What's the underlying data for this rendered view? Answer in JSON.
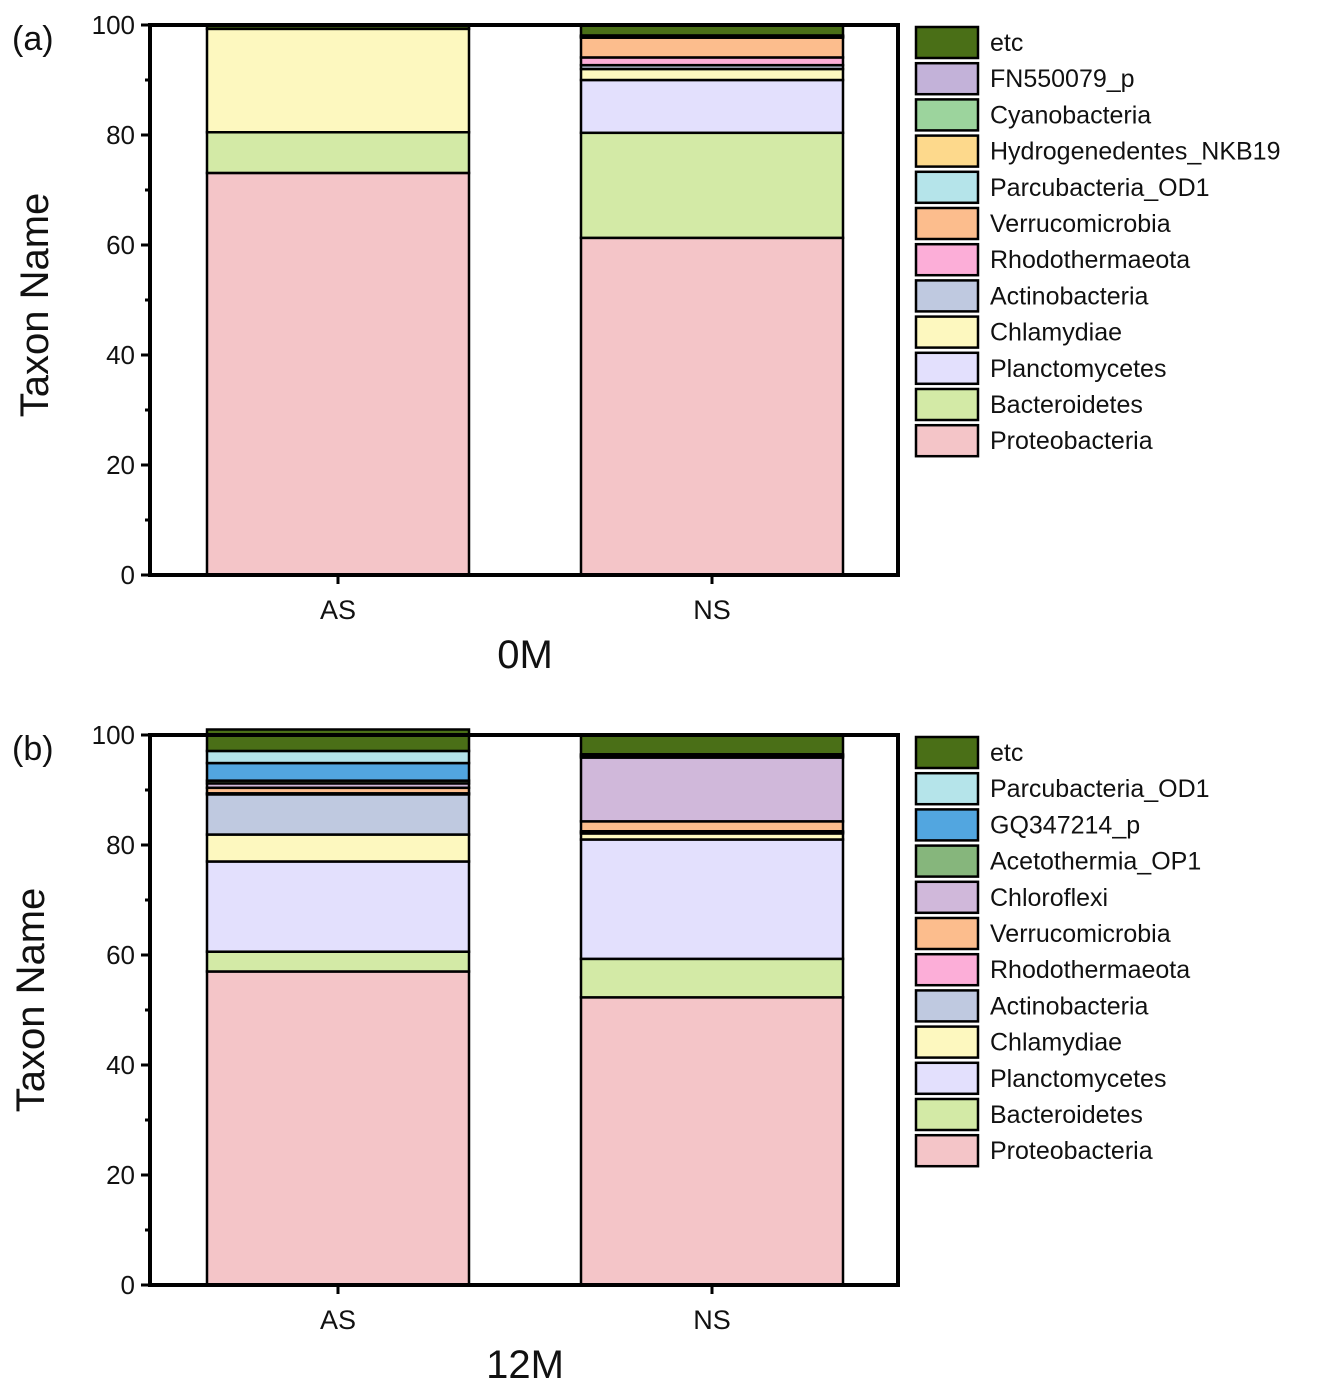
{
  "chart_data": [
    {
      "type": "bar",
      "stacked": true,
      "panel_label": "(a)",
      "title": "",
      "xlabel": "0M",
      "ylabel": "Taxon Name",
      "ylim": [
        0,
        100
      ],
      "yticks": [
        "0",
        "20",
        "40",
        "60",
        "80",
        "100"
      ],
      "categories": [
        "AS",
        "NS"
      ],
      "legend_position": "right",
      "legend": [
        "etc",
        "FN550079_p",
        "Cyanobacteria",
        "Hydrogenedentes_NKB19",
        "Parcubacteria_OD1",
        "Verrucomicrobia",
        "Rhodothermaeota",
        "Actinobacteria",
        "Chlamydiae",
        "Planctomycetes",
        "Bacteroidetes",
        "Proteobacteria"
      ],
      "series": [
        {
          "name": "Proteobacteria",
          "color": "#f4c5c8",
          "values": [
            73.1,
            61.3
          ]
        },
        {
          "name": "Bacteroidetes",
          "color": "#d3eaa6",
          "values": [
            7.4,
            19.1
          ]
        },
        {
          "name": "Planctomycetes",
          "color": "#e3e0fd",
          "values": [
            0.0,
            9.6
          ]
        },
        {
          "name": "Chlamydiae",
          "color": "#fdf8bf",
          "values": [
            18.8,
            2.0
          ]
        },
        {
          "name": "Actinobacteria",
          "color": "#bfc9e0",
          "values": [
            0.0,
            0.7
          ]
        },
        {
          "name": "Rhodothermaeota",
          "color": "#fcaed8",
          "values": [
            0.0,
            1.4
          ]
        },
        {
          "name": "Verrucomicrobia",
          "color": "#fcbd8d",
          "values": [
            0.0,
            3.6
          ]
        },
        {
          "name": "Parcubacteria_OD1",
          "color": "#b5e4ea",
          "values": [
            0.0,
            0.1
          ]
        },
        {
          "name": "Hydrogenedentes_NKB19",
          "color": "#fdd98c",
          "values": [
            0.0,
            0.1
          ]
        },
        {
          "name": "Cyanobacteria",
          "color": "#9cd49d",
          "values": [
            0.0,
            0.1
          ]
        },
        {
          "name": "FN550079_p",
          "color": "#c3b2d9",
          "values": [
            0.0,
            0.1
          ]
        },
        {
          "name": "etc",
          "color": "#4a6f17",
          "values": [
            0.7,
            1.9
          ]
        }
      ]
    },
    {
      "type": "bar",
      "stacked": true,
      "panel_label": "(b)",
      "title": "",
      "xlabel": "12M",
      "ylabel": "Taxon Name",
      "ylim": [
        0,
        100
      ],
      "yticks": [
        "0",
        "20",
        "40",
        "60",
        "80",
        "100"
      ],
      "categories": [
        "AS",
        "NS"
      ],
      "legend_position": "right",
      "legend": [
        "etc",
        "Parcubacteria_OD1",
        "GQ347214_p",
        "Acetothermia_OP1",
        "Chloroflexi",
        "Verrucomicrobia",
        "Rhodothermaeota",
        "Actinobacteria",
        "Chlamydiae",
        "Planctomycetes",
        "Bacteroidetes",
        "Proteobacteria"
      ],
      "series": [
        {
          "name": "Proteobacteria",
          "color": "#f4c5c8",
          "values": [
            57.0,
            52.3
          ]
        },
        {
          "name": "Bacteroidetes",
          "color": "#d3eaa6",
          "values": [
            3.6,
            7.0
          ]
        },
        {
          "name": "Planctomycetes",
          "color": "#e3e0fd",
          "values": [
            16.4,
            21.7
          ]
        },
        {
          "name": "Chlamydiae",
          "color": "#fdf8bf",
          "values": [
            4.9,
            1.1
          ]
        },
        {
          "name": "Actinobacteria",
          "color": "#bfc9e0",
          "values": [
            7.3,
            0.2
          ]
        },
        {
          "name": "Rhodothermaeota",
          "color": "#fcaed8",
          "values": [
            0.2,
            0.2
          ]
        },
        {
          "name": "Verrucomicrobia",
          "color": "#fcbd8d",
          "values": [
            1.0,
            1.8
          ]
        },
        {
          "name": "Chloroflexi",
          "color": "#d0b8da",
          "values": [
            0.8,
            11.6
          ]
        },
        {
          "name": "Acetothermia_OP1",
          "color": "#86b67c",
          "values": [
            0.5,
            0.2
          ]
        },
        {
          "name": "GQ347214_p",
          "color": "#52a6e0",
          "values": [
            3.2,
            0.2
          ]
        },
        {
          "name": "Parcubacteria_OD1",
          "color": "#b5e4ea",
          "values": [
            2.2,
            0.2
          ]
        },
        {
          "name": "etc",
          "color": "#4a6f17",
          "values": [
            3.9,
            3.5
          ]
        }
      ]
    }
  ]
}
